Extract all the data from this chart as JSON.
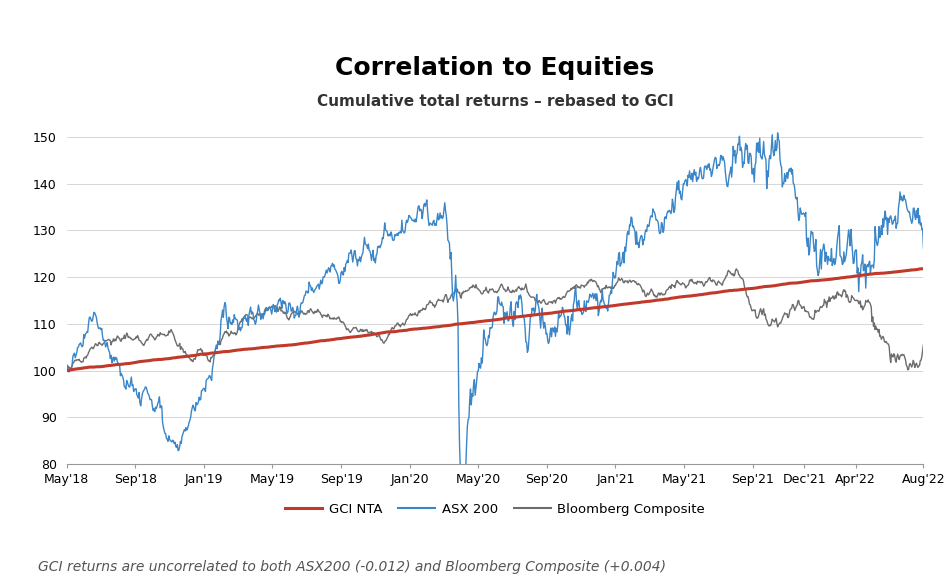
{
  "title": "Correlation to Equities",
  "subtitle": "Cumulative total returns – rebased to GCI",
  "footnote": "GCI returns are uncorrelated to both ASX200 (-0.012) and Bloomberg Composite (+0.004)",
  "ylabel_min": 80,
  "ylabel_max": 152,
  "yticks": [
    80,
    90,
    100,
    110,
    120,
    130,
    140,
    150
  ],
  "xtick_labels": [
    "May'18",
    "Sep'18",
    "Jan'19",
    "May'19",
    "Sep'19",
    "Jan'20",
    "May'20",
    "Sep'20",
    "Jan'21",
    "May'21",
    "Sep'21",
    "Dec'21",
    "Apr'22",
    "Aug'22"
  ],
  "gci_color": "#c0392b",
  "asx_color": "#3a86c8",
  "bloomberg_color": "#6d6d6d",
  "legend_labels": [
    "GCI NTA",
    "ASX 200",
    "Bloomberg Composite"
  ],
  "title_fontsize": 18,
  "subtitle_fontsize": 11,
  "footnote_fontsize": 10,
  "n_days": 1100
}
